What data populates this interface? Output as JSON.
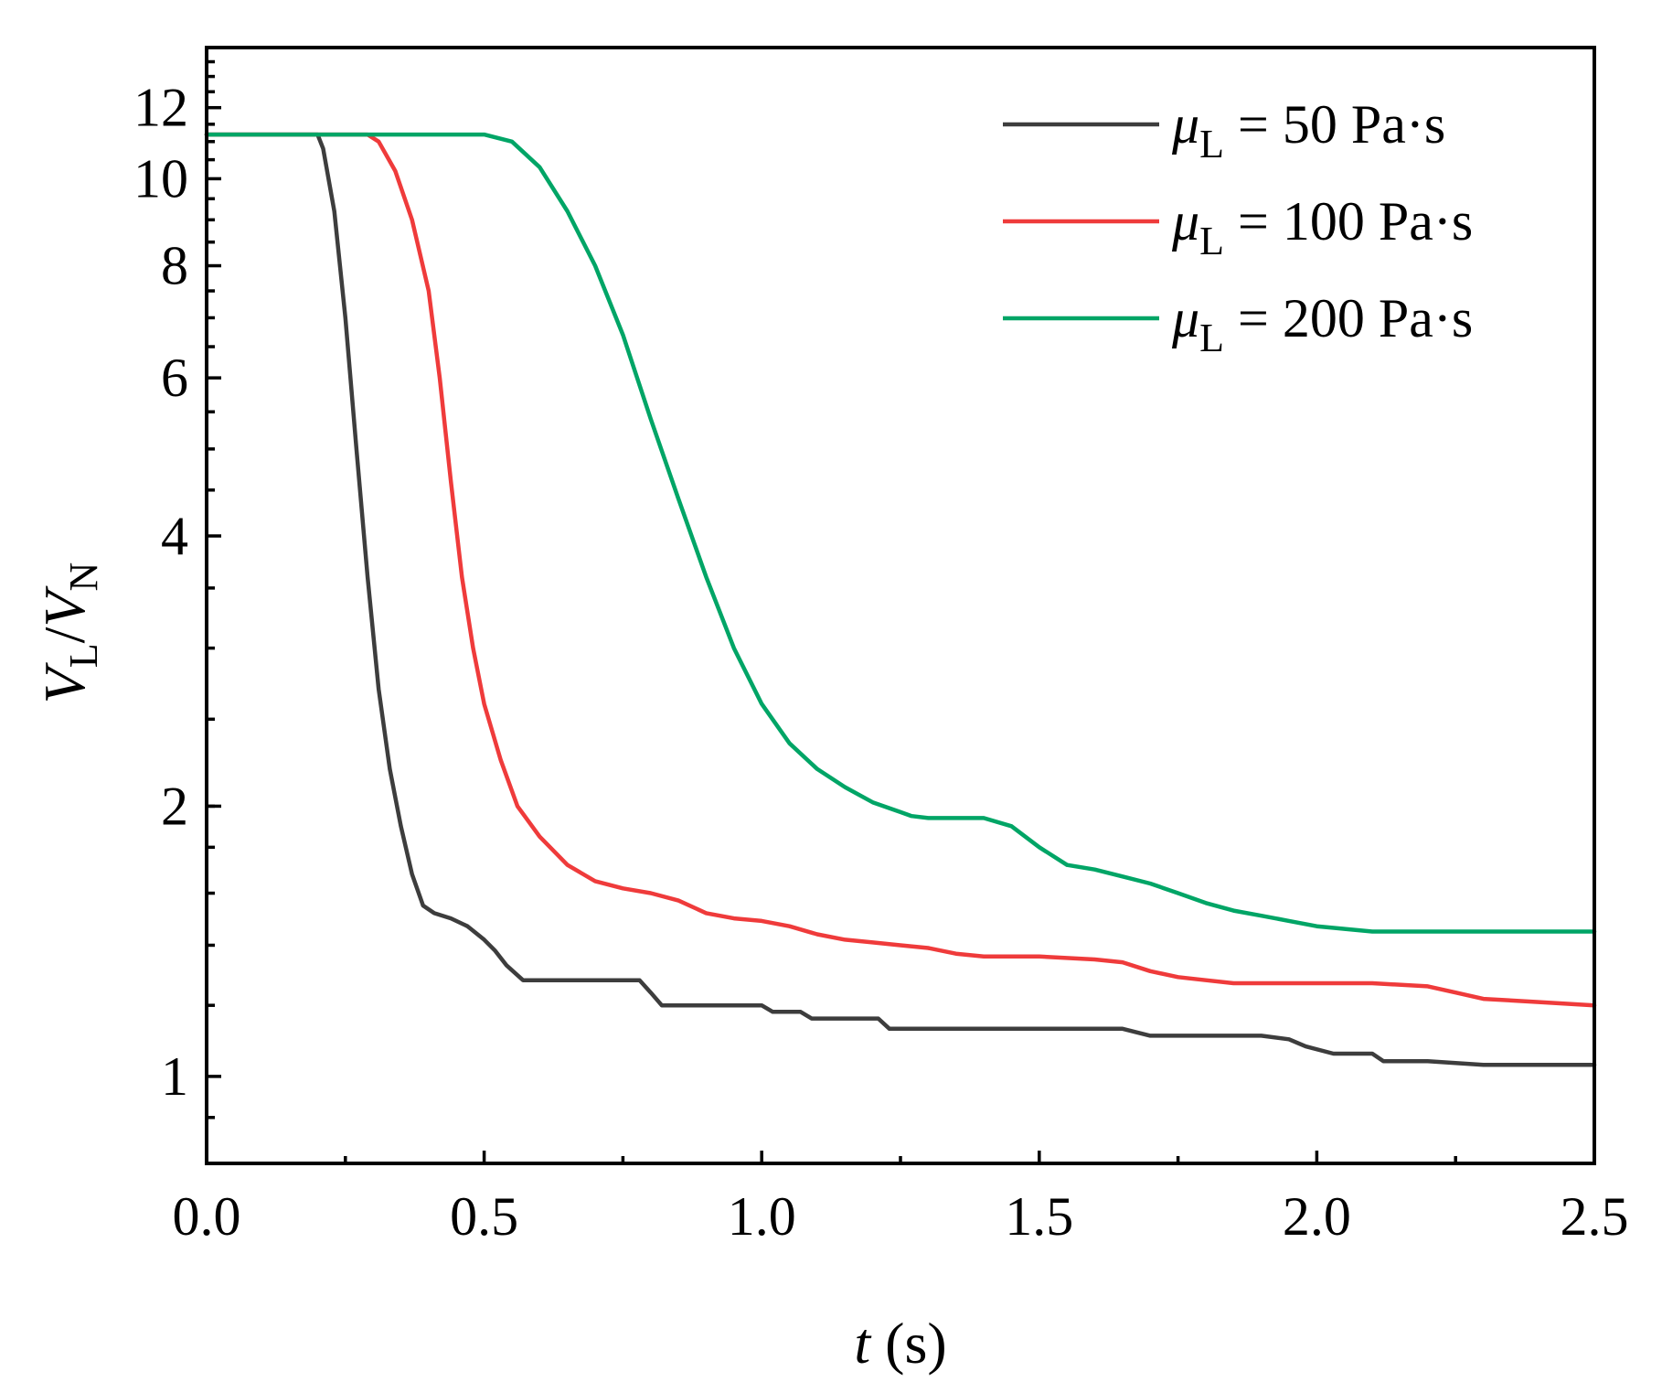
{
  "chart_data": {
    "type": "line",
    "title": "",
    "xlabel": {
      "var": "t",
      "unit": " (s)"
    },
    "ylabel": {
      "v1": "V",
      "sub1": "L",
      "sep": "/",
      "v2": "V",
      "sub2": "N"
    },
    "yscale": "log",
    "xlim": [
      0,
      2.5
    ],
    "ylim": [
      0.8,
      14
    ],
    "x_ticks": [
      {
        "value": 0.0,
        "label": "0.0"
      },
      {
        "value": 0.5,
        "label": "0.5"
      },
      {
        "value": 1.0,
        "label": "1.0"
      },
      {
        "value": 1.5,
        "label": "1.5"
      },
      {
        "value": 2.0,
        "label": "2.0"
      },
      {
        "value": 2.5,
        "label": "2.5"
      }
    ],
    "x_minor_ticks": [
      0.25,
      0.75,
      1.25,
      1.75,
      2.25
    ],
    "y_ticks": [
      {
        "value": 1,
        "label": "1"
      },
      {
        "value": 2,
        "label": "2"
      },
      {
        "value": 4,
        "label": "4"
      },
      {
        "value": 6,
        "label": "6"
      },
      {
        "value": 8,
        "label": "8"
      },
      {
        "value": 10,
        "label": "10"
      },
      {
        "value": 12,
        "label": "12"
      }
    ],
    "legend_position": "top-right",
    "series": [
      {
        "name": "μL = 50 Pa·s",
        "legend": {
          "sym": "μ",
          "sub": "L",
          "rest": " = 50 Pa·s"
        },
        "color": "#3d3d3d",
        "points": [
          [
            0,
            11.2
          ],
          [
            0.2,
            11.2
          ],
          [
            0.21,
            10.8
          ],
          [
            0.23,
            9.2
          ],
          [
            0.25,
            7.0
          ],
          [
            0.27,
            5.0
          ],
          [
            0.29,
            3.6
          ],
          [
            0.31,
            2.7
          ],
          [
            0.33,
            2.2
          ],
          [
            0.35,
            1.9
          ],
          [
            0.37,
            1.68
          ],
          [
            0.39,
            1.55
          ],
          [
            0.41,
            1.52
          ],
          [
            0.44,
            1.5
          ],
          [
            0.47,
            1.47
          ],
          [
            0.5,
            1.42
          ],
          [
            0.52,
            1.38
          ],
          [
            0.54,
            1.33
          ],
          [
            0.57,
            1.28
          ],
          [
            0.6,
            1.28
          ],
          [
            0.7,
            1.28
          ],
          [
            0.78,
            1.28
          ],
          [
            0.8,
            1.24
          ],
          [
            0.82,
            1.2
          ],
          [
            0.85,
            1.2
          ],
          [
            0.95,
            1.2
          ],
          [
            1.0,
            1.2
          ],
          [
            1.02,
            1.18
          ],
          [
            1.07,
            1.18
          ],
          [
            1.09,
            1.16
          ],
          [
            1.15,
            1.16
          ],
          [
            1.21,
            1.16
          ],
          [
            1.23,
            1.13
          ],
          [
            1.3,
            1.13
          ],
          [
            1.45,
            1.13
          ],
          [
            1.6,
            1.13
          ],
          [
            1.65,
            1.13
          ],
          [
            1.7,
            1.11
          ],
          [
            1.8,
            1.11
          ],
          [
            1.9,
            1.11
          ],
          [
            1.95,
            1.1
          ],
          [
            1.98,
            1.08
          ],
          [
            2.03,
            1.06
          ],
          [
            2.1,
            1.06
          ],
          [
            2.12,
            1.04
          ],
          [
            2.2,
            1.04
          ],
          [
            2.3,
            1.03
          ],
          [
            2.5,
            1.03
          ]
        ]
      },
      {
        "name": "μL = 100 Pa·s",
        "legend": {
          "sym": "μ",
          "sub": "L",
          "rest": " = 100 Pa·s"
        },
        "color": "#ef3b3b",
        "points": [
          [
            0,
            11.2
          ],
          [
            0.29,
            11.2
          ],
          [
            0.31,
            11.0
          ],
          [
            0.34,
            10.2
          ],
          [
            0.37,
            9.0
          ],
          [
            0.4,
            7.5
          ],
          [
            0.42,
            6.0
          ],
          [
            0.44,
            4.6
          ],
          [
            0.46,
            3.6
          ],
          [
            0.48,
            3.0
          ],
          [
            0.5,
            2.6
          ],
          [
            0.53,
            2.25
          ],
          [
            0.56,
            2.0
          ],
          [
            0.6,
            1.85
          ],
          [
            0.65,
            1.72
          ],
          [
            0.7,
            1.65
          ],
          [
            0.75,
            1.62
          ],
          [
            0.8,
            1.6
          ],
          [
            0.85,
            1.57
          ],
          [
            0.9,
            1.52
          ],
          [
            0.95,
            1.5
          ],
          [
            1.0,
            1.49
          ],
          [
            1.05,
            1.47
          ],
          [
            1.1,
            1.44
          ],
          [
            1.15,
            1.42
          ],
          [
            1.2,
            1.41
          ],
          [
            1.25,
            1.4
          ],
          [
            1.3,
            1.39
          ],
          [
            1.35,
            1.37
          ],
          [
            1.4,
            1.36
          ],
          [
            1.5,
            1.36
          ],
          [
            1.6,
            1.35
          ],
          [
            1.65,
            1.34
          ],
          [
            1.7,
            1.31
          ],
          [
            1.75,
            1.29
          ],
          [
            1.8,
            1.28
          ],
          [
            1.85,
            1.27
          ],
          [
            2.0,
            1.27
          ],
          [
            2.1,
            1.27
          ],
          [
            2.2,
            1.26
          ],
          [
            2.25,
            1.24
          ],
          [
            2.3,
            1.22
          ],
          [
            2.4,
            1.21
          ],
          [
            2.5,
            1.2
          ]
        ]
      },
      {
        "name": "μL = 200 Pa·s",
        "legend": {
          "sym": "μ",
          "sub": "L",
          "rest": " = 200 Pa·s"
        },
        "color": "#00a566",
        "points": [
          [
            0,
            11.2
          ],
          [
            0.5,
            11.2
          ],
          [
            0.55,
            11.0
          ],
          [
            0.6,
            10.3
          ],
          [
            0.65,
            9.2
          ],
          [
            0.7,
            8.0
          ],
          [
            0.75,
            6.7
          ],
          [
            0.8,
            5.4
          ],
          [
            0.85,
            4.4
          ],
          [
            0.9,
            3.6
          ],
          [
            0.95,
            3.0
          ],
          [
            1.0,
            2.6
          ],
          [
            1.05,
            2.35
          ],
          [
            1.1,
            2.2
          ],
          [
            1.15,
            2.1
          ],
          [
            1.2,
            2.02
          ],
          [
            1.25,
            1.97
          ],
          [
            1.27,
            1.95
          ],
          [
            1.3,
            1.94
          ],
          [
            1.35,
            1.94
          ],
          [
            1.4,
            1.94
          ],
          [
            1.45,
            1.9
          ],
          [
            1.5,
            1.8
          ],
          [
            1.55,
            1.72
          ],
          [
            1.6,
            1.7
          ],
          [
            1.65,
            1.67
          ],
          [
            1.7,
            1.64
          ],
          [
            1.75,
            1.6
          ],
          [
            1.8,
            1.56
          ],
          [
            1.85,
            1.53
          ],
          [
            1.9,
            1.51
          ],
          [
            1.95,
            1.49
          ],
          [
            2.0,
            1.47
          ],
          [
            2.05,
            1.46
          ],
          [
            2.1,
            1.45
          ],
          [
            2.2,
            1.45
          ],
          [
            2.3,
            1.45
          ],
          [
            2.5,
            1.45
          ]
        ]
      }
    ]
  }
}
